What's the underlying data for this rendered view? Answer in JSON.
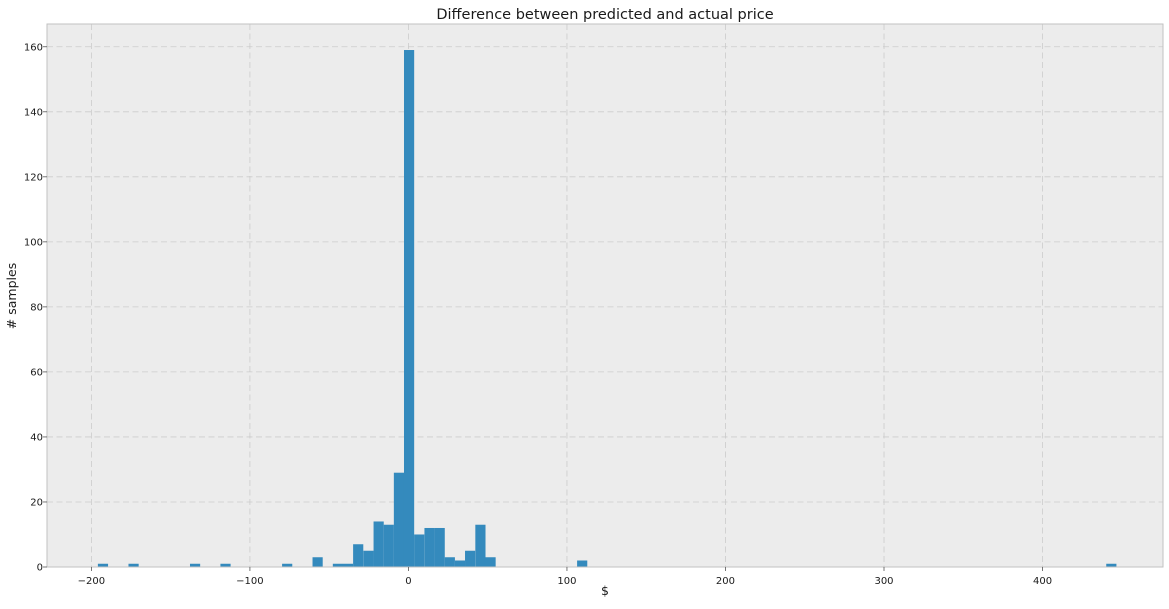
{
  "chart_data": {
    "type": "bar",
    "title": "Difference between predicted and actual price",
    "xlabel": "$",
    "ylabel": "# samples",
    "xlim": [
      -228,
      476
    ],
    "ylim": [
      0,
      167
    ],
    "xticks": [
      -200,
      -100,
      0,
      100,
      200,
      300,
      400
    ],
    "xtick_labels": [
      "−200",
      "−100",
      "0",
      "100",
      "200",
      "300",
      "400"
    ],
    "yticks": [
      0,
      20,
      40,
      60,
      80,
      100,
      120,
      140,
      160
    ],
    "grid": true,
    "bin_width": 6.42,
    "bins": [
      {
        "x0": -195.9,
        "count": 1
      },
      {
        "x0": -176.6,
        "count": 1
      },
      {
        "x0": -137.8,
        "count": 1
      },
      {
        "x0": -118.6,
        "count": 1
      },
      {
        "x0": -79.7,
        "count": 1
      },
      {
        "x0": -60.5,
        "count": 3
      },
      {
        "x0": -47.7,
        "count": 1
      },
      {
        "x0": -41.3,
        "count": 1
      },
      {
        "x0": -34.9,
        "count": 7
      },
      {
        "x0": -28.4,
        "count": 5
      },
      {
        "x0": -22.0,
        "count": 14
      },
      {
        "x0": -15.6,
        "count": 13
      },
      {
        "x0": -9.2,
        "count": 29
      },
      {
        "x0": -2.8,
        "count": 159
      },
      {
        "x0": 3.6,
        "count": 10
      },
      {
        "x0": 10.1,
        "count": 12
      },
      {
        "x0": 16.5,
        "count": 12
      },
      {
        "x0": 22.9,
        "count": 3
      },
      {
        "x0": 29.3,
        "count": 2
      },
      {
        "x0": 35.7,
        "count": 5
      },
      {
        "x0": 42.2,
        "count": 13
      },
      {
        "x0": 48.6,
        "count": 3
      },
      {
        "x0": 106.4,
        "count": 2
      },
      {
        "x0": 440.2,
        "count": 1
      }
    ],
    "colors": {
      "bar": "#348abd",
      "plot_background": "#ececec",
      "grid": "#cbcbcb",
      "frame": "#c2c2c2"
    }
  }
}
